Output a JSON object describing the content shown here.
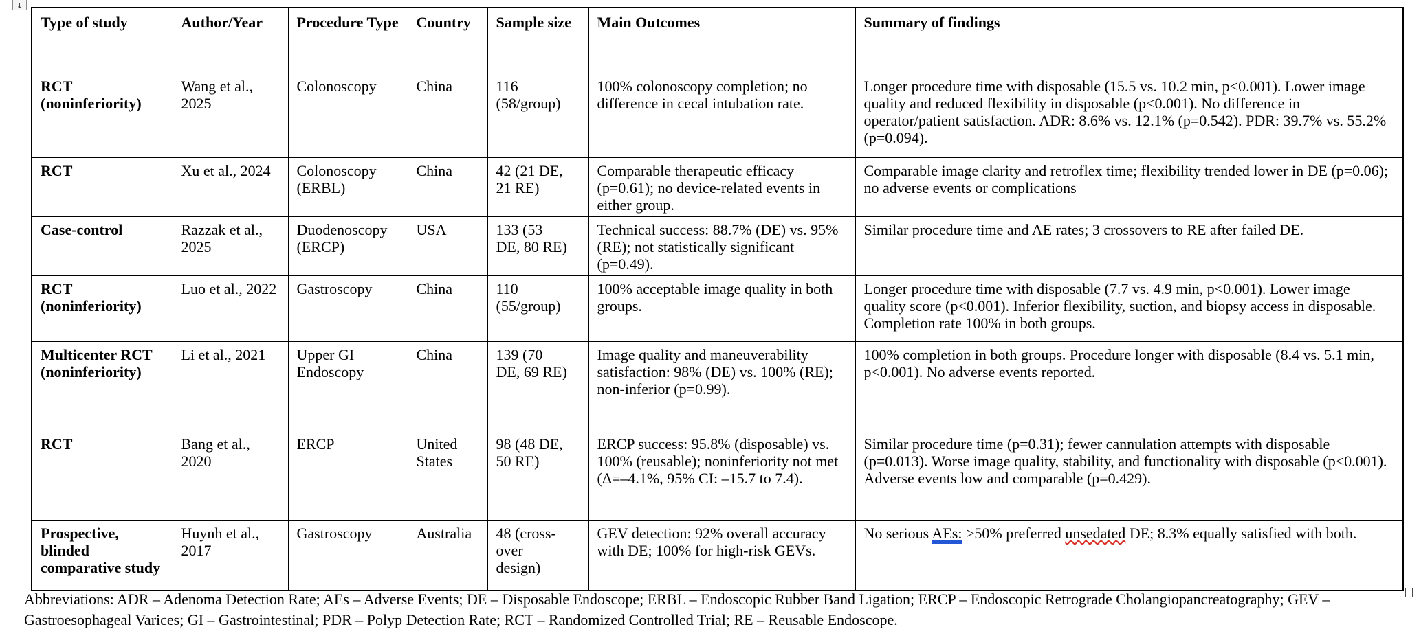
{
  "page": {
    "table_anchor_icon": "↓"
  },
  "table": {
    "headers": {
      "type": "Type of study",
      "author": "Author/Year",
      "procedure": "Procedure Type",
      "country": "Country",
      "sample": "Sample size",
      "outcomes": "Main Outcomes",
      "summary": "Summary of findings"
    },
    "rows": [
      {
        "type": "RCT (noninferiority)",
        "author": "Wang et al., 2025",
        "procedure": "Colonoscopy",
        "country": "China",
        "sample": "116 (58/group)",
        "outcomes": "100% colonoscopy completion; no difference in cecal intubation rate.",
        "summary": "Longer procedure time with disposable (15.5 vs. 10.2 min, p<0.001). Lower image quality and reduced flexibility in disposable (p<0.001). No difference in operator/patient satisfaction. ADR: 8.6% vs. 12.1% (p=0.542). PDR: 39.7% vs. 55.2% (p=0.094)."
      },
      {
        "type": "RCT",
        "author": "Xu et al., 2024",
        "procedure": "Colonoscopy (ERBL)",
        "country": "China",
        "sample": "42 (21 DE, 21 RE)",
        "outcomes": "Comparable therapeutic efficacy (p=0.61); no device-related events in either group.",
        "summary": "Comparable image clarity and retroflex time; flexibility trended lower in DE (p=0.06); no adverse events or complications"
      },
      {
        "type": "Case-control",
        "author": "Razzak et al., 2025",
        "procedure": "Duodenoscopy (ERCP)",
        "country": "USA",
        "sample": "133 (53 DE, 80 RE)",
        "outcomes": "Technical success: 88.7% (DE) vs. 95% (RE); not statistically significant (p=0.49).",
        "summary": "Similar procedure time and AE rates; 3 crossovers to RE after failed DE."
      },
      {
        "type": "RCT (noninferiority)",
        "author": "Luo et al., 2022",
        "procedure": "Gastroscopy",
        "country": "China",
        "sample": "110 (55/group)",
        "outcomes": "100% acceptable image quality in both groups.",
        "summary": "Longer procedure time with disposable (7.7 vs. 4.9 min, p<0.001). Lower image quality score (p<0.001). Inferior flexibility, suction, and biopsy access in disposable. Completion rate 100% in both groups."
      },
      {
        "type": "Multicenter RCT (noninferiority)",
        "author": "Li et al., 2021",
        "procedure": "Upper GI Endoscopy",
        "country": "China",
        "sample": "139 (70 DE, 69 RE)",
        "outcomes": "Image quality and maneuverability satisfaction: 98% (DE) vs. 100% (RE); non-inferior (p=0.99).",
        "summary": "100% completion in both groups. Procedure longer with disposable (8.4 vs. 5.1 min, p<0.001). No adverse events reported."
      },
      {
        "type": "RCT",
        "author": "Bang et al., 2020",
        "procedure": "ERCP",
        "country": "United States",
        "sample": "98 (48 DE, 50 RE)",
        "outcomes": "ERCP success: 95.8% (disposable) vs. 100% (reusable); noninferiority not met (Δ=–4.1%, 95% CI: –15.7 to 7.4).",
        "summary": "Similar procedure time (p=0.31); fewer cannulation attempts with disposable (p=0.013). Worse image quality, stability, and functionality with disposable (p<0.001). Adverse events low and comparable (p=0.429)."
      },
      {
        "type": "Prospective, blinded comparative study",
        "author": "Huynh et al., 2017",
        "procedure": "Gastroscopy",
        "country": "Australia",
        "sample": "48 (cross-over design)",
        "outcomes": "GEV detection: 92% overall accuracy with DE; 100% for high-risk GEVs.",
        "summary_parts": [
          {
            "text": "No serious ",
            "style": "plain"
          },
          {
            "text": "AEs:",
            "style": "grammar"
          },
          {
            "text": " >50% preferred ",
            "style": "plain"
          },
          {
            "text": "unsedated",
            "style": "spelling"
          },
          {
            "text": " DE; 8.3% equally satisfied with both.",
            "style": "plain"
          }
        ]
      }
    ]
  },
  "footer": {
    "abbreviations": "Abbreviations: ADR – Adenoma Detection Rate; AEs – Adverse Events; DE – Disposable Endoscope; ERBL – Endoscopic Rubber Band Ligation; ERCP – Endoscopic Retrograde Cholangiopancreatography; GEV – Gastroesophageal Varices; GI – Gastrointestinal; PDR – Polyp Detection Rate; RCT – Randomized Controlled Trial; RE – Reusable Endoscope."
  }
}
